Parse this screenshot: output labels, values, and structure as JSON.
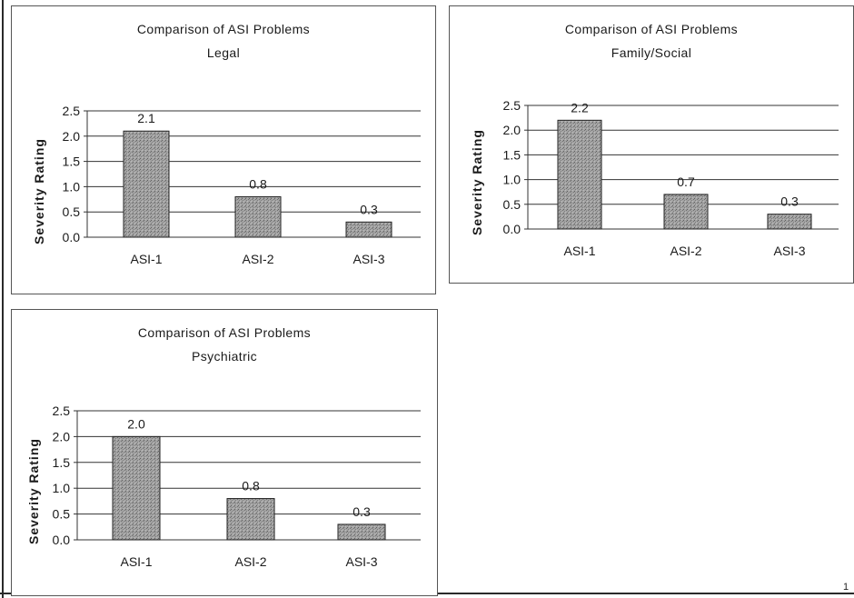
{
  "chart_data": [
    {
      "type": "bar",
      "title": "Comparison of ASI Problems",
      "subtitle": "Legal",
      "xlabel": "",
      "ylabel": "Severity Rating",
      "ylim": [
        0,
        2.5
      ],
      "yticks": [
        "0.0",
        "0.5",
        "1.0",
        "1.5",
        "2.0",
        "2.5"
      ],
      "categories": [
        "ASI-1",
        "ASI-2",
        "ASI-3"
      ],
      "values": [
        2.1,
        0.8,
        0.3
      ],
      "data_labels": [
        "2.1",
        "0.8",
        "0.3"
      ],
      "grid": true,
      "legend": "none"
    },
    {
      "type": "bar",
      "title": "Comparison of ASI Problems",
      "subtitle": "Family/Social",
      "xlabel": "",
      "ylabel": "Severity Rating",
      "ylim": [
        0,
        2.5
      ],
      "yticks": [
        "0.0",
        "0.5",
        "1.0",
        "1.5",
        "2.0",
        "2.5"
      ],
      "categories": [
        "ASI-1",
        "ASI-2",
        "ASI-3"
      ],
      "values": [
        2.2,
        0.7,
        0.3
      ],
      "data_labels": [
        "2.2",
        "0.7",
        "0.3"
      ],
      "grid": true,
      "legend": "none"
    },
    {
      "type": "bar",
      "title": "Comparison of ASI Problems",
      "subtitle": "Psychiatric",
      "xlabel": "",
      "ylabel": "Severity Rating",
      "ylim": [
        0,
        2.5
      ],
      "yticks": [
        "0.0",
        "0.5",
        "1.0",
        "1.5",
        "2.0",
        "2.5"
      ],
      "categories": [
        "ASI-1",
        "ASI-2",
        "ASI-3"
      ],
      "values": [
        2.0,
        0.8,
        0.3
      ],
      "data_labels": [
        "2.0",
        "0.8",
        "0.3"
      ],
      "grid": true,
      "legend": "none"
    }
  ],
  "page": {
    "page_number": "1"
  },
  "colors": {
    "bar_fill": "#9c9c9c",
    "bar_stroke": "#222222",
    "gridline": "#333333",
    "text": "#1a1a1a"
  }
}
